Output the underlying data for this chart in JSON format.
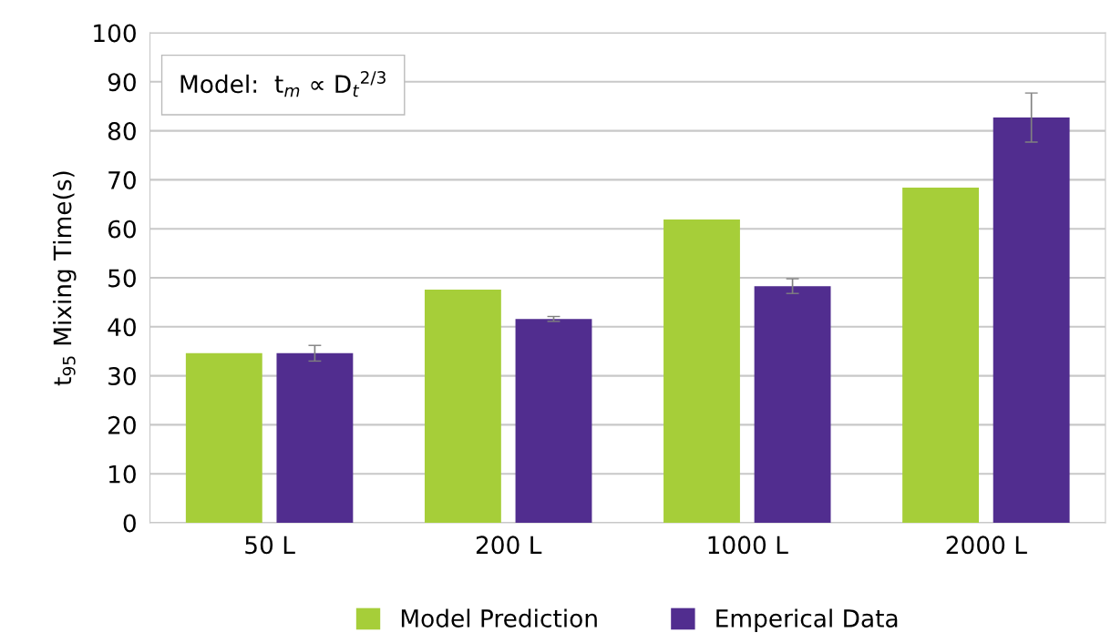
{
  "chart_data": {
    "type": "bar",
    "ylabel": "t$_{95}$ Mixing Time(s)",
    "categories": [
      "50 L",
      "200 L",
      "1000 L",
      "2000 L"
    ],
    "series": [
      {
        "name": "Model Prediction",
        "color": "#a6ce39",
        "values": [
          34.6,
          47.6,
          61.9,
          68.4
        ]
      },
      {
        "name": "Emperical Data",
        "color": "#512d8f",
        "values": [
          34.6,
          41.6,
          48.3,
          82.7
        ],
        "errors": [
          1.6,
          0.5,
          1.5,
          5
        ]
      }
    ],
    "ylim": [
      0,
      100
    ],
    "yticks": [
      0,
      10,
      20,
      30,
      40,
      50,
      60,
      70,
      80,
      90,
      100
    ],
    "grid": "y",
    "legend": "bottom",
    "annotations": [
      "Model:  t$_{m}$ ∝ D$_{t}$$^{2/3}$"
    ]
  }
}
